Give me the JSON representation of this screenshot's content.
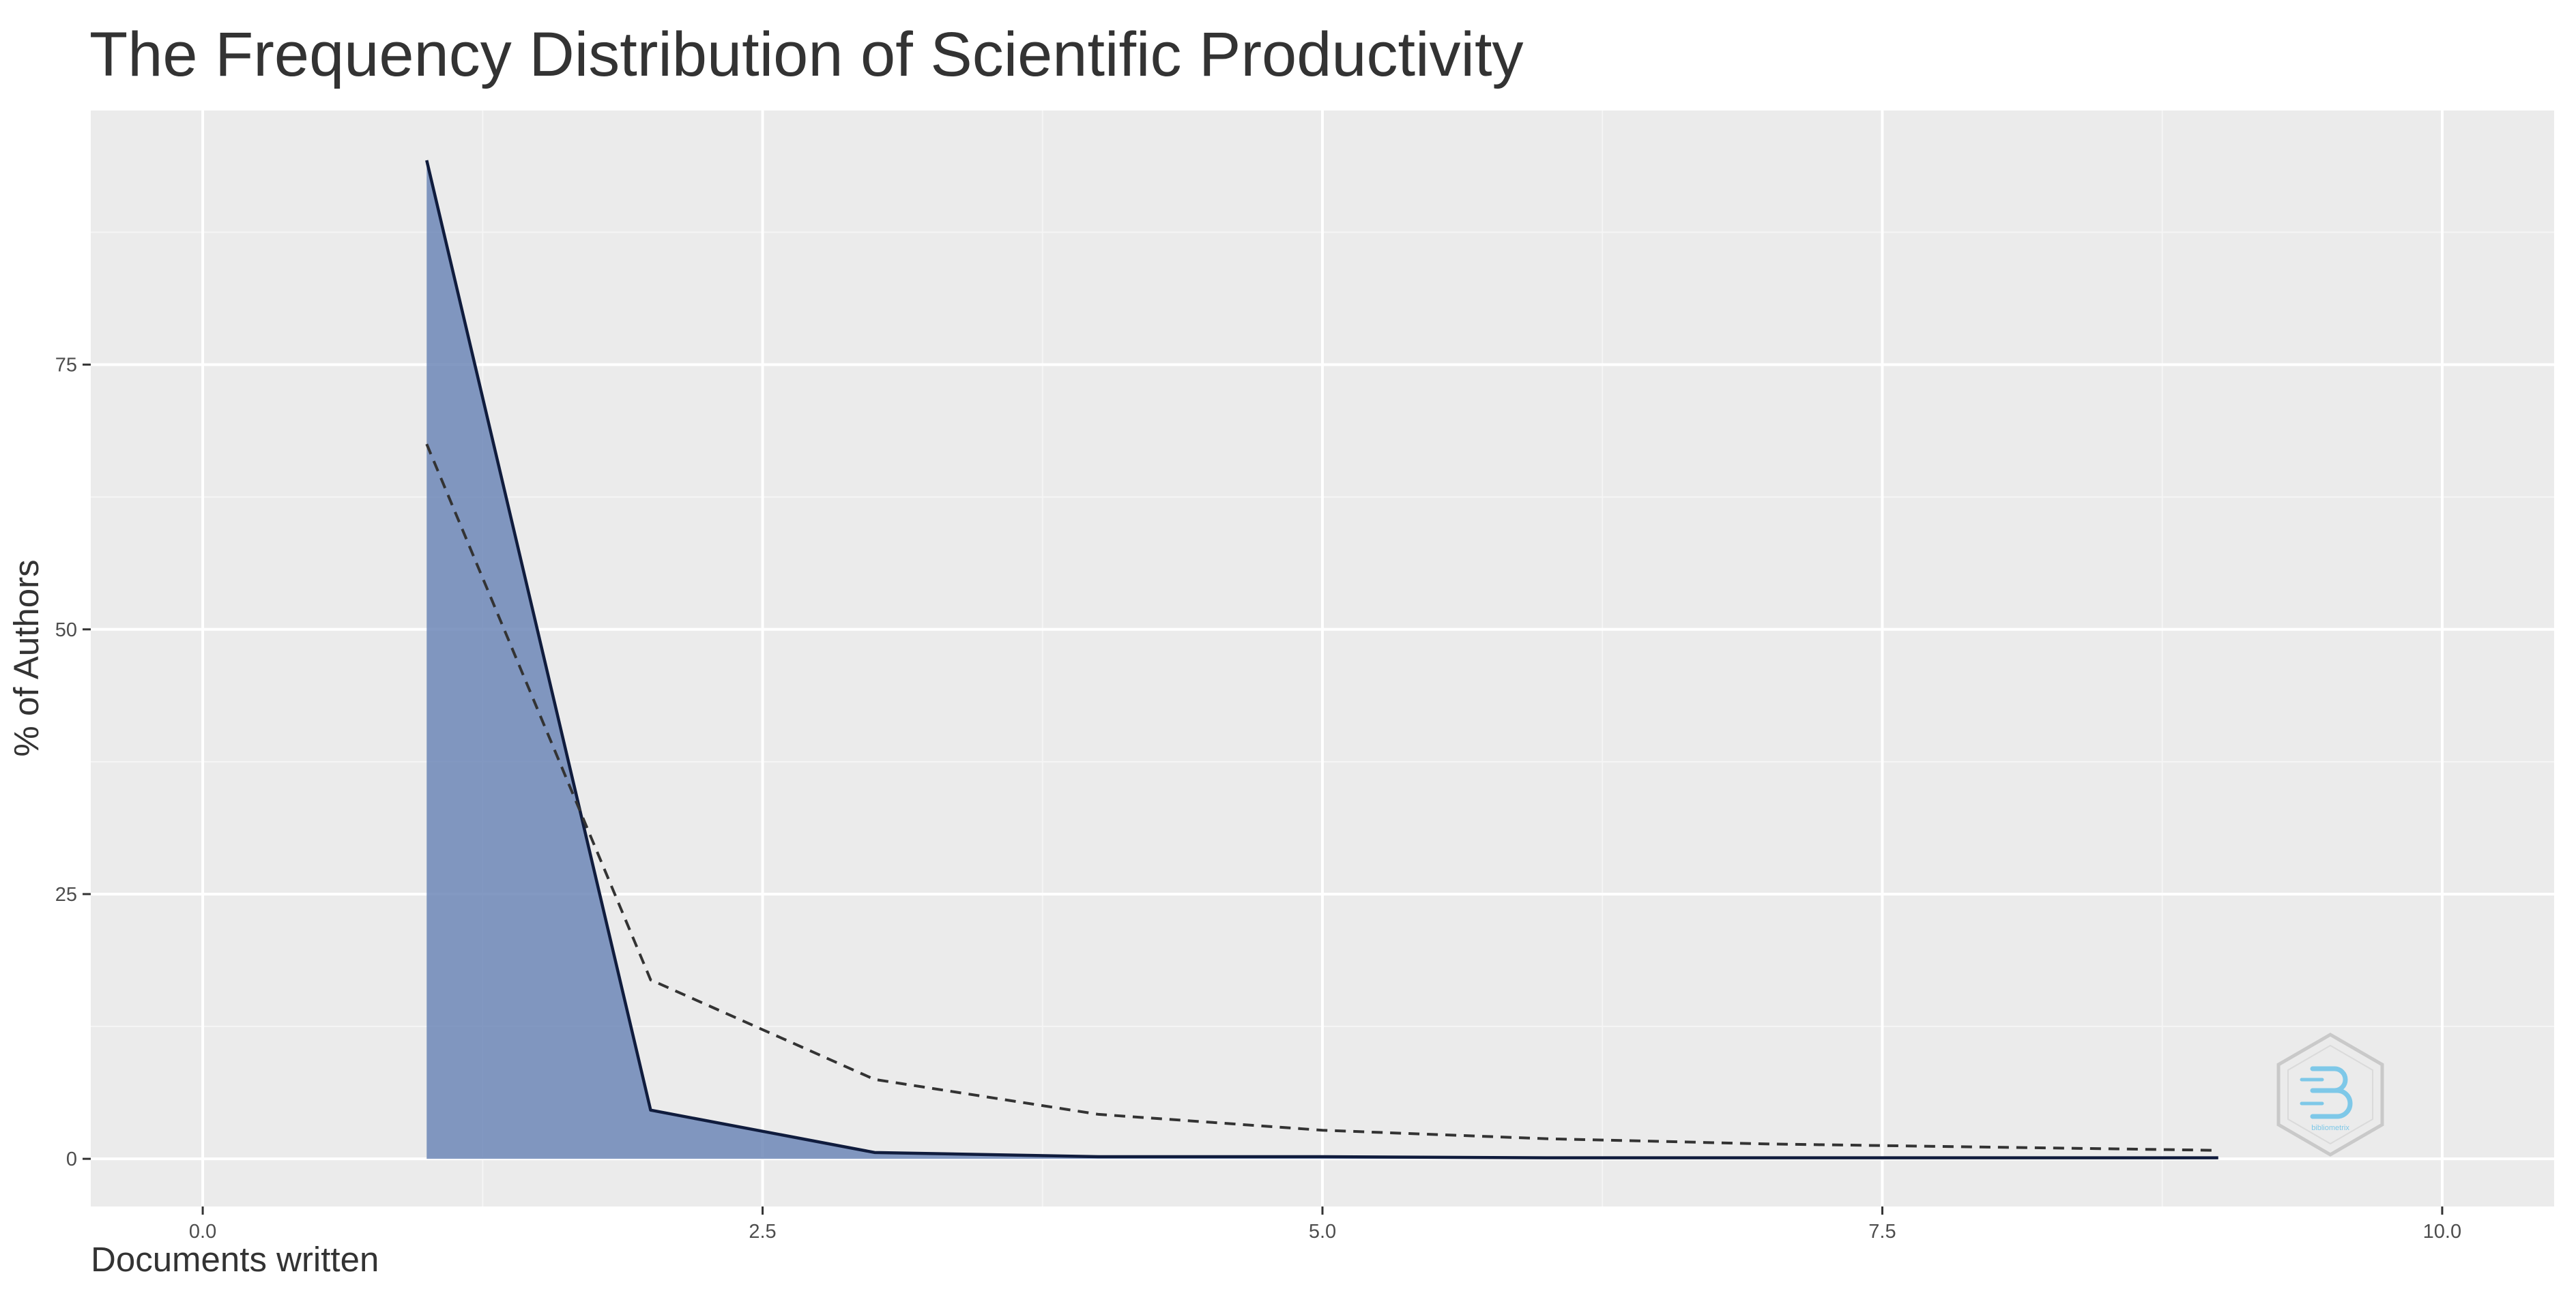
{
  "chart_data": {
    "type": "area",
    "title": "The Frequency Distribution of Scientific Productivity",
    "xlabel": "Documents written",
    "ylabel": "% of Authors",
    "xlim": [
      -0.5,
      10.5
    ],
    "ylim": [
      -4.5,
      99
    ],
    "x_ticks": [
      0.0,
      2.5,
      5.0,
      7.5,
      10.0
    ],
    "x_tick_labels": [
      "0.0",
      "2.5",
      "5.0",
      "7.5",
      "10.0"
    ],
    "y_ticks": [
      0,
      25,
      50,
      75
    ],
    "y_tick_labels": [
      "0",
      "25",
      "50",
      "75"
    ],
    "grid": true,
    "series": [
      {
        "style": "solid-area",
        "fill_color": "#6d87b7",
        "line_color": "#101c3d",
        "x": [
          1,
          2,
          3,
          4,
          5,
          6,
          7,
          8,
          9
        ],
        "y": [
          94.3,
          4.6,
          0.6,
          0.2,
          0.2,
          0.1,
          0.1,
          0.1,
          0.1
        ]
      },
      {
        "style": "dashed",
        "line_color": "#333333",
        "x": [
          1,
          2,
          3,
          4,
          5,
          6,
          7,
          8,
          9
        ],
        "y": [
          67.5,
          16.9,
          7.5,
          4.2,
          2.7,
          1.9,
          1.4,
          1.1,
          0.8
        ]
      }
    ],
    "colors": {
      "panel_background": "#ebebeb",
      "grid_major": "#ffffff",
      "grid_minor": "#f5f5f5",
      "tick_mark": "#333333"
    },
    "logo": {
      "name": "bibliometrix-logo-icon",
      "text": "bibliometrix"
    }
  }
}
